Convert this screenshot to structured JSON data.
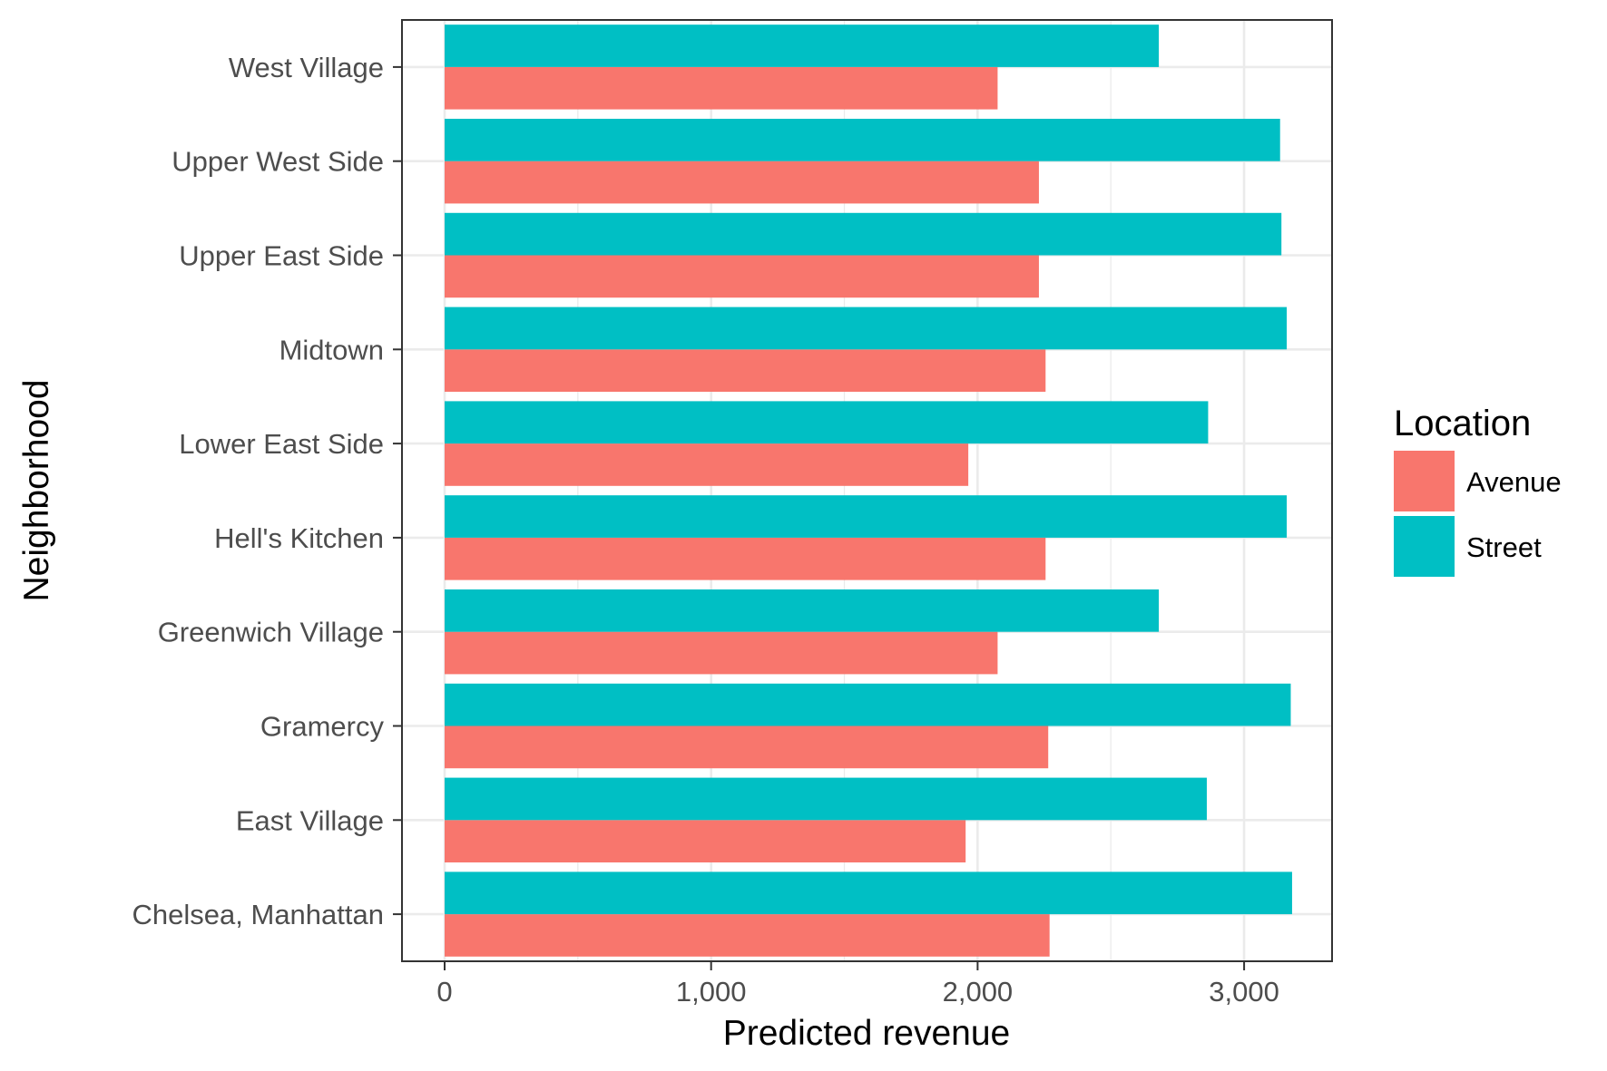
{
  "chart_data": {
    "type": "bar",
    "orientation": "horizontal",
    "title": "",
    "xlabel": "Predicted revenue",
    "ylabel": "Neighborhood",
    "xlim": [
      -160,
      3330
    ],
    "xticks": [
      0,
      1000,
      2000,
      3000
    ],
    "xtick_labels": [
      "0",
      "1,000",
      "2,000",
      "3,000"
    ],
    "grid": true,
    "categories": [
      "Chelsea, Manhattan",
      "East Village",
      "Gramercy",
      "Greenwich Village",
      "Hell's Kitchen",
      "Lower East Side",
      "Midtown",
      "Upper East Side",
      "Upper West Side",
      "West Village"
    ],
    "series": [
      {
        "name": "Avenue",
        "color": "#F8766D",
        "values": [
          2270,
          1955,
          2265,
          2075,
          2255,
          1965,
          2255,
          2230,
          2230,
          2075
        ]
      },
      {
        "name": "Street",
        "color": "#00BFC4",
        "values": [
          3180,
          2860,
          3175,
          2680,
          3160,
          2865,
          3160,
          3140,
          3135,
          2680
        ]
      }
    ],
    "legend": {
      "title": "Location",
      "position": "right",
      "entries": [
        "Avenue",
        "Street"
      ]
    }
  }
}
